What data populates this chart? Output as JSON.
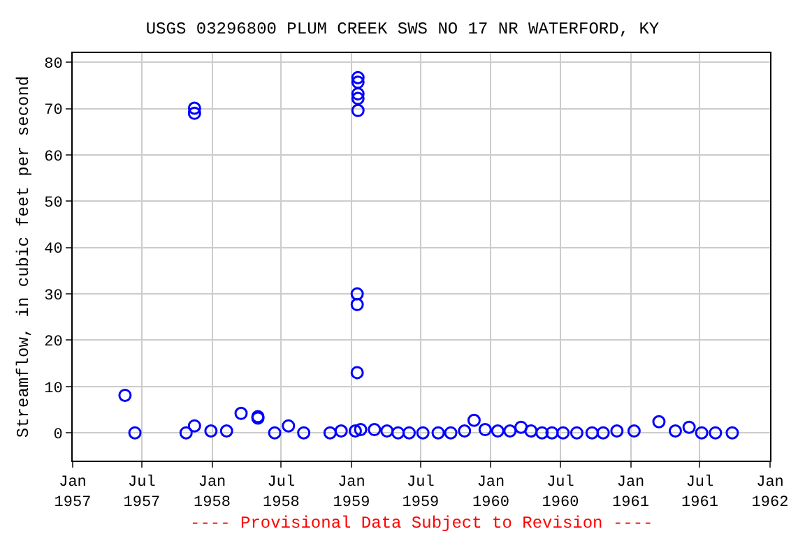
{
  "chart_data": {
    "type": "scatter",
    "title": "USGS 03296800 PLUM CREEK SWS NO 17 NR WATERFORD, KY",
    "ylabel": "Streamflow, in cubic feet per second",
    "annotations": [
      "---- Provisional Data Subject to Revision ----"
    ],
    "x": [
      "1957-05-18",
      "1957-06-13",
      "1957-10-25",
      "1957-11-16",
      "1957-11-16",
      "1957-11-16",
      "1957-12-29",
      "1958-02-08",
      "1958-03-18",
      "1958-05-01",
      "1958-05-01",
      "1958-06-14",
      "1958-07-20",
      "1958-08-29",
      "1958-11-06",
      "1958-12-05",
      "1959-01-11",
      "1959-01-18",
      "1959-01-18",
      "1959-01-18",
      "1959-01-18",
      "1959-01-18",
      "1959-01-16",
      "1959-01-16",
      "1959-01-16",
      "1959-01-25",
      "1959-03-02",
      "1959-04-04",
      "1959-05-03",
      "1959-06-01",
      "1959-07-07",
      "1959-08-16",
      "1959-09-18",
      "1959-10-24",
      "1959-11-18",
      "1959-12-17",
      "1960-01-19",
      "1960-02-20",
      "1960-03-20",
      "1960-04-15",
      "1960-05-14",
      "1960-06-09",
      "1960-07-08",
      "1960-08-13",
      "1960-09-22",
      "1960-10-21",
      "1960-11-26",
      "1961-01-10",
      "1961-03-16",
      "1961-04-28",
      "1961-06-03",
      "1961-07-06",
      "1961-08-11",
      "1961-09-24"
    ],
    "series": [
      {
        "color": "#0000ff",
        "values": [
          8.1,
          0,
          0,
          1.5,
          69.0,
          70.1,
          0.4,
          0.4,
          4.2,
          3.2,
          3.5,
          0,
          1.5,
          0,
          0,
          0.4,
          0.4,
          76.7,
          75.7,
          73.2,
          72.2,
          69.6,
          30.0,
          27.7,
          13.0,
          0.7,
          0.7,
          0.4,
          0,
          0,
          0,
          0,
          0,
          0.4,
          2.7,
          0.7,
          0.4,
          0.4,
          1.2,
          0.4,
          0,
          0,
          0,
          0,
          0,
          0,
          0.4,
          0.4,
          2.4,
          0.4,
          1.2,
          0,
          0,
          0
        ]
      }
    ],
    "marker": "circle",
    "grid": true,
    "legend": false,
    "xlim": [
      "1957-01-01",
      "1962-01-01"
    ],
    "xticks": [
      {
        "value": "1957-01-01",
        "label": "Jan 1957"
      },
      {
        "value": "1957-07-01",
        "label": "Jul 1957"
      },
      {
        "value": "1958-01-01",
        "label": "Jan 1958"
      },
      {
        "value": "1958-07-01",
        "label": "Jul 1958"
      },
      {
        "value": "1959-01-01",
        "label": "Jan 1959"
      },
      {
        "value": "1959-07-01",
        "label": "Jul 1959"
      },
      {
        "value": "1960-01-01",
        "label": "Jan 1960"
      },
      {
        "value": "1960-07-01",
        "label": "Jul 1960"
      },
      {
        "value": "1961-01-01",
        "label": "Jan 1961"
      },
      {
        "value": "1961-07-01",
        "label": "Jul 1961"
      },
      {
        "value": "1962-01-01",
        "label": "Jan 1962"
      }
    ],
    "ylim": [
      -6,
      82
    ],
    "yticks": [
      0,
      10,
      20,
      30,
      40,
      50,
      60,
      70,
      80
    ]
  }
}
